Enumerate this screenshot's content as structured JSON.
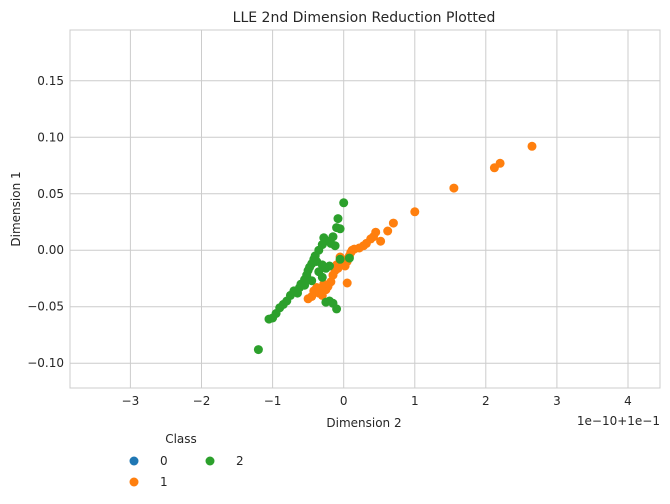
{
  "chart_data": {
    "type": "scatter",
    "title": "LLE 2nd Dimension Reduction Plotted",
    "xlabel": "Dimension 2",
    "ylabel": "Dimension 1",
    "x_offset_label": "1e−10+1e−1",
    "xlim": [
      -3.85,
      4.45
    ],
    "ylim": [
      -0.122,
      0.195
    ],
    "x_ticks": [
      -3,
      -2,
      -1,
      0,
      1,
      2,
      3,
      4
    ],
    "x_tick_labels": [
      "−3",
      "−2",
      "−1",
      "0",
      "1",
      "2",
      "3",
      "4"
    ],
    "y_ticks": [
      -0.1,
      -0.05,
      0.0,
      0.05,
      0.1,
      0.15
    ],
    "y_tick_labels": [
      "−0.10",
      "−0.05",
      "0.00",
      "0.05",
      "0.10",
      "0.15"
    ],
    "grid": true,
    "legend": {
      "title": "Class",
      "placement": "bottom-left",
      "entries": [
        {
          "label": "0",
          "color": "#1f77b4"
        },
        {
          "label": "1",
          "color": "#ff7f0e"
        },
        {
          "label": "2",
          "color": "#2ca02c"
        }
      ]
    },
    "series": [
      {
        "name": "1",
        "color": "#ff7f0e",
        "points": [
          [
            2.65,
            0.092
          ],
          [
            2.2,
            0.077
          ],
          [
            2.12,
            0.073
          ],
          [
            1.55,
            0.055
          ],
          [
            1.0,
            0.034
          ],
          [
            0.7,
            0.024
          ],
          [
            0.62,
            0.017
          ],
          [
            0.52,
            0.008
          ],
          [
            0.45,
            0.016
          ],
          [
            0.42,
            0.012
          ],
          [
            0.38,
            0.01
          ],
          [
            0.32,
            0.006
          ],
          [
            0.28,
            0.004
          ],
          [
            0.22,
            0.002
          ],
          [
            0.15,
            0.001
          ],
          [
            0.12,
            0.0
          ],
          [
            0.08,
            -0.005
          ],
          [
            0.05,
            -0.01
          ],
          [
            0.02,
            -0.014
          ],
          [
            0.0,
            -0.012
          ],
          [
            -0.02,
            -0.008
          ],
          [
            -0.05,
            -0.01
          ],
          [
            -0.08,
            -0.016
          ],
          [
            -0.1,
            -0.013
          ],
          [
            -0.12,
            -0.018
          ],
          [
            -0.15,
            -0.022
          ],
          [
            -0.18,
            -0.028
          ],
          [
            -0.22,
            -0.032
          ],
          [
            -0.25,
            -0.035
          ],
          [
            -0.28,
            -0.03
          ],
          [
            -0.32,
            -0.034
          ],
          [
            -0.35,
            -0.038
          ],
          [
            -0.38,
            -0.033
          ],
          [
            -0.42,
            -0.036
          ],
          [
            -0.45,
            -0.041
          ],
          [
            -0.5,
            -0.043
          ],
          [
            0.05,
            -0.029
          ],
          [
            -0.05,
            -0.006
          ],
          [
            0.1,
            -0.002
          ],
          [
            -0.3,
            -0.04
          ]
        ]
      },
      {
        "name": "2",
        "color": "#2ca02c",
        "points": [
          [
            0.0,
            0.042
          ],
          [
            -0.08,
            0.028
          ],
          [
            -0.1,
            0.02
          ],
          [
            -0.05,
            0.019
          ],
          [
            -0.15,
            0.012
          ],
          [
            -0.28,
            0.011
          ],
          [
            -0.22,
            0.008
          ],
          [
            -0.3,
            0.005
          ],
          [
            -0.12,
            0.004
          ],
          [
            -0.18,
            0.006
          ],
          [
            -0.35,
            0.0
          ],
          [
            -0.4,
            -0.005
          ],
          [
            -0.42,
            -0.008
          ],
          [
            -0.45,
            -0.012
          ],
          [
            -0.48,
            -0.015
          ],
          [
            -0.5,
            -0.018
          ],
          [
            -0.38,
            -0.01
          ],
          [
            -0.3,
            -0.013
          ],
          [
            -0.25,
            -0.016
          ],
          [
            -0.2,
            -0.014
          ],
          [
            -0.52,
            -0.022
          ],
          [
            -0.55,
            -0.026
          ],
          [
            -0.6,
            -0.03
          ],
          [
            -0.62,
            -0.033
          ],
          [
            -0.7,
            -0.036
          ],
          [
            -0.75,
            -0.04
          ],
          [
            -0.8,
            -0.045
          ],
          [
            -0.85,
            -0.048
          ],
          [
            -0.9,
            -0.051
          ],
          [
            -0.95,
            -0.056
          ],
          [
            -1.0,
            -0.06
          ],
          [
            -1.05,
            -0.061
          ],
          [
            -1.2,
            -0.088
          ],
          [
            -0.2,
            -0.045
          ],
          [
            -0.15,
            -0.047
          ],
          [
            -0.1,
            -0.052
          ],
          [
            -0.25,
            -0.046
          ],
          [
            -0.3,
            -0.024
          ],
          [
            -0.05,
            -0.008
          ],
          [
            0.08,
            -0.007
          ],
          [
            -0.35,
            -0.019
          ],
          [
            -0.45,
            -0.027
          ],
          [
            -0.55,
            -0.031
          ],
          [
            -0.65,
            -0.038
          ]
        ]
      }
    ]
  }
}
